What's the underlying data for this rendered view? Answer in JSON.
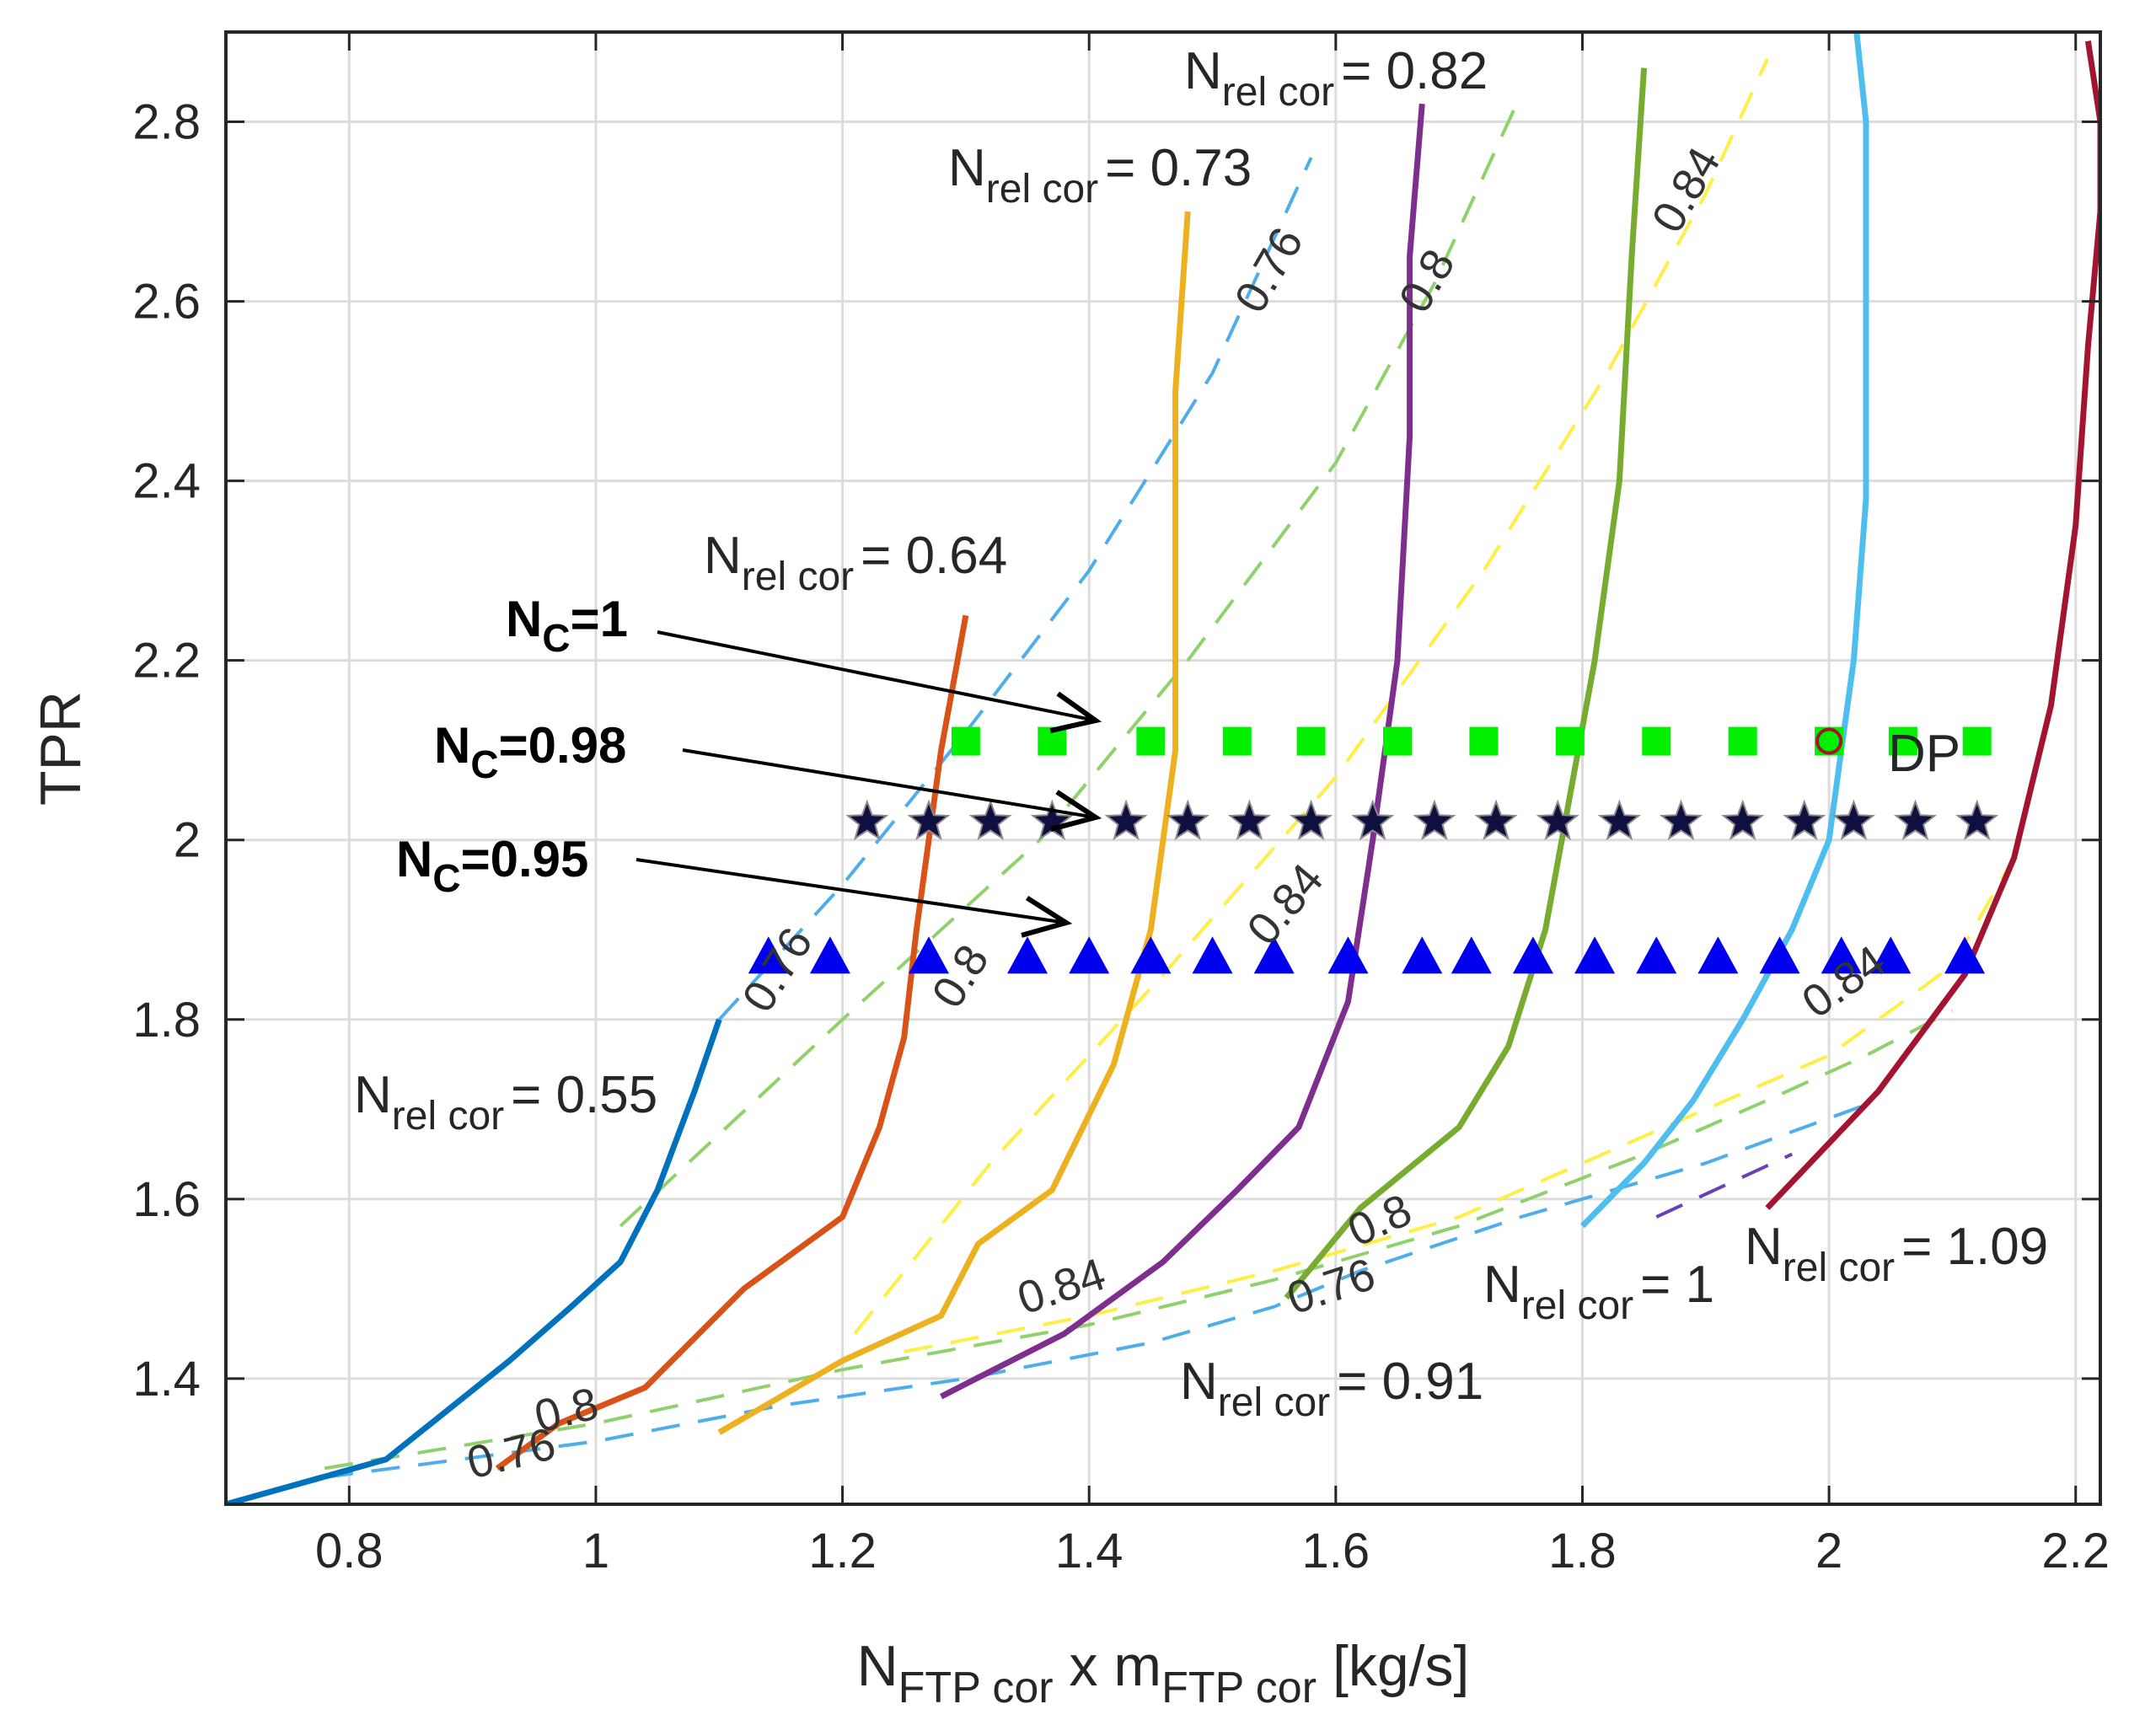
{
  "chart_data": {
    "type": "line",
    "title": "",
    "xlabel": {
      "main": "N",
      "sub1": "FTP cor",
      "mid": " x m",
      "sub2": "FTP cor",
      "tail": " [kg/s]"
    },
    "ylabel": "TPR",
    "xlim": [
      0.7,
      2.22
    ],
    "ylim": [
      1.26,
      2.9
    ],
    "xticks": [
      0.8,
      1,
      1.2,
      1.4,
      1.6,
      1.8,
      2,
      2.2
    ],
    "xtick_labels": [
      "0.8",
      "1",
      "1.2",
      "1.4",
      "1.6",
      "1.8",
      "2",
      "2.2"
    ],
    "yticks": [
      1.4,
      1.6,
      1.8,
      2.0,
      2.2,
      2.4,
      2.6,
      2.8
    ],
    "ytick_labels": [
      "1.4",
      "1.6",
      "1.8",
      "2",
      "2.2",
      "2.4",
      "2.6",
      "2.8"
    ],
    "grid": true,
    "speed_lines": [
      {
        "name": "N_rel cor = 0.55",
        "color": "#0072BD",
        "x": [
          0.7,
          0.83,
          0.93,
          0.98,
          1.02,
          1.05,
          1.08,
          1.1
        ],
        "y": [
          1.26,
          1.31,
          1.42,
          1.48,
          1.53,
          1.61,
          1.72,
          1.8
        ]
      },
      {
        "name": "N_rel cor = 0.64",
        "color": "#D95319",
        "x": [
          0.92,
          0.97,
          1.04,
          1.12,
          1.2,
          1.23,
          1.25,
          1.26,
          1.27,
          1.28,
          1.3
        ],
        "y": [
          1.3,
          1.35,
          1.39,
          1.5,
          1.58,
          1.68,
          1.78,
          1.9,
          2.0,
          2.1,
          2.25
        ]
      },
      {
        "name": "N_rel cor = 0.73",
        "color": "#EDB120",
        "x": [
          1.1,
          1.2,
          1.28,
          1.31,
          1.37,
          1.42,
          1.45,
          1.47,
          1.47,
          1.47,
          1.48
        ],
        "y": [
          1.34,
          1.42,
          1.47,
          1.55,
          1.61,
          1.75,
          1.9,
          2.1,
          2.3,
          2.5,
          2.7
        ]
      },
      {
        "name": "N_rel cor = 0.82",
        "color": "#7E2F8E",
        "x": [
          1.28,
          1.38,
          1.46,
          1.52,
          1.57,
          1.61,
          1.63,
          1.65,
          1.66,
          1.66,
          1.67
        ],
        "y": [
          1.38,
          1.45,
          1.53,
          1.61,
          1.68,
          1.82,
          2.0,
          2.2,
          2.45,
          2.65,
          2.82
        ]
      },
      {
        "name": "N_rel cor = 0.91",
        "color": "#77AC30",
        "x": [
          1.56,
          1.62,
          1.7,
          1.74,
          1.77,
          1.79,
          1.81,
          1.83,
          1.84,
          1.85
        ],
        "y": [
          1.49,
          1.59,
          1.68,
          1.77,
          1.9,
          2.05,
          2.2,
          2.4,
          2.65,
          2.86
        ]
      },
      {
        "name": "N_rel cor = 1",
        "color": "#4DBEEE",
        "x": [
          1.8,
          1.85,
          1.89,
          1.93,
          1.97,
          2.0,
          2.01,
          2.02,
          2.03,
          2.03,
          2.03,
          2.02
        ],
        "y": [
          1.57,
          1.64,
          1.71,
          1.8,
          1.9,
          2.0,
          2.1,
          2.2,
          2.38,
          2.6,
          2.8,
          2.93
        ]
      },
      {
        "name": "N_rel cor = 1.09",
        "color": "#A2142F",
        "x": [
          1.95,
          2.04,
          2.11,
          2.15,
          2.18,
          2.2,
          2.21,
          2.22,
          2.22,
          2.21
        ],
        "y": [
          1.59,
          1.72,
          1.85,
          1.98,
          2.15,
          2.35,
          2.55,
          2.7,
          2.8,
          2.89
        ]
      }
    ],
    "efficiency_contours": [
      {
        "label": "0.76",
        "color": "#4DAEEA",
        "x": [
          0.78,
          1.0,
          1.15,
          1.3,
          1.45,
          1.55,
          1.62,
          1.75,
          1.9,
          2.04
        ],
        "y": [
          1.29,
          1.33,
          1.37,
          1.4,
          1.44,
          1.48,
          1.52,
          1.58,
          1.64,
          1.71
        ]
      },
      {
        "label": "0.76",
        "color": "#4DAEEA",
        "x": [
          1.1,
          1.2,
          1.3,
          1.4,
          1.5,
          1.58
        ],
        "y": [
          1.8,
          1.95,
          2.12,
          2.3,
          2.52,
          2.76
        ]
      },
      {
        "label": "0.8",
        "color": "#8FD16B",
        "x": [
          0.78,
          1.0,
          1.2,
          1.4,
          1.55,
          1.7,
          1.85,
          1.95,
          2.03,
          2.1
        ],
        "y": [
          1.3,
          1.35,
          1.41,
          1.46,
          1.51,
          1.57,
          1.65,
          1.71,
          1.76,
          1.81
        ]
      },
      {
        "label": "0.8",
        "color": "#8FD16B",
        "x": [
          1.02,
          1.2,
          1.36,
          1.48,
          1.6,
          1.68,
          1.75
        ],
        "y": [
          1.57,
          1.8,
          2.0,
          2.2,
          2.42,
          2.62,
          2.83
        ]
      },
      {
        "label": "0.84",
        "color": "#FFEE44",
        "x": [
          1.25,
          1.4,
          1.55,
          1.7,
          1.85,
          2.0,
          2.1,
          2.15
        ],
        "y": [
          1.43,
          1.47,
          1.52,
          1.58,
          1.67,
          1.76,
          1.86,
          1.98
        ]
      },
      {
        "label": "0.84",
        "color": "#FFEE44",
        "x": [
          1.21,
          1.32,
          1.46,
          1.6,
          1.72,
          1.82,
          1.9,
          1.95
        ],
        "y": [
          1.45,
          1.64,
          1.85,
          2.07,
          2.3,
          2.52,
          2.72,
          2.87
        ]
      },
      {
        "label": "",
        "color": "#6A3FB8",
        "x": [
          1.86,
          1.97
        ],
        "y": [
          1.58,
          1.65
        ]
      }
    ],
    "operating_lines": [
      {
        "name": "N_C=1",
        "marker": "square",
        "color": "#00F000",
        "y": 2.11,
        "x": [
          1.3,
          1.37,
          1.45,
          1.52,
          1.58,
          1.65,
          1.72,
          1.79,
          1.86,
          1.93,
          2.0,
          2.06,
          2.12
        ]
      },
      {
        "name": "N_C=0.98",
        "marker": "star",
        "color": "#101040",
        "y": 2.02,
        "x": [
          1.22,
          1.27,
          1.32,
          1.37,
          1.43,
          1.48,
          1.53,
          1.58,
          1.63,
          1.68,
          1.73,
          1.78,
          1.83,
          1.88,
          1.93,
          1.98,
          2.02,
          2.07,
          2.12
        ]
      },
      {
        "name": "N_C=0.95",
        "marker": "triangle",
        "color": "#0000EE",
        "y": 1.87,
        "x": [
          1.14,
          1.19,
          1.27,
          1.35,
          1.4,
          1.45,
          1.5,
          1.55,
          1.61,
          1.67,
          1.71,
          1.76,
          1.81,
          1.86,
          1.91,
          1.96,
          2.01,
          2.05,
          2.11
        ]
      }
    ],
    "design_point": {
      "label": "DP",
      "x": 2.0,
      "y": 2.11
    },
    "annotations": {
      "speed_labels": [
        {
          "main": "N",
          "sub": "rel cor",
          "value": "= 0.55"
        },
        {
          "main": "N",
          "sub": "rel cor",
          "value": "= 0.64"
        },
        {
          "main": "N",
          "sub": "rel cor",
          "value": "= 0.73"
        },
        {
          "main": "N",
          "sub": "rel cor",
          "value": "= 0.82"
        },
        {
          "main": "N",
          "sub": "rel cor",
          "value": "= 0.91"
        },
        {
          "main": "N",
          "sub": "rel cor",
          "value": "= 1"
        },
        {
          "main": "N",
          "sub": "rel cor",
          "value": "= 1.09"
        }
      ],
      "op_labels": [
        {
          "main": "N",
          "sub": "C",
          "value": "=1"
        },
        {
          "main": "N",
          "sub": "C",
          "value": "=0.98"
        },
        {
          "main": "N",
          "sub": "C",
          "value": "=0.95"
        }
      ],
      "contour_labels": [
        "0.76",
        "0.8",
        "0.76",
        "0.8",
        "0.76",
        "0.8",
        "0.84",
        "0.76",
        "0.8",
        "0.84",
        "0.84",
        "0.84"
      ]
    }
  }
}
